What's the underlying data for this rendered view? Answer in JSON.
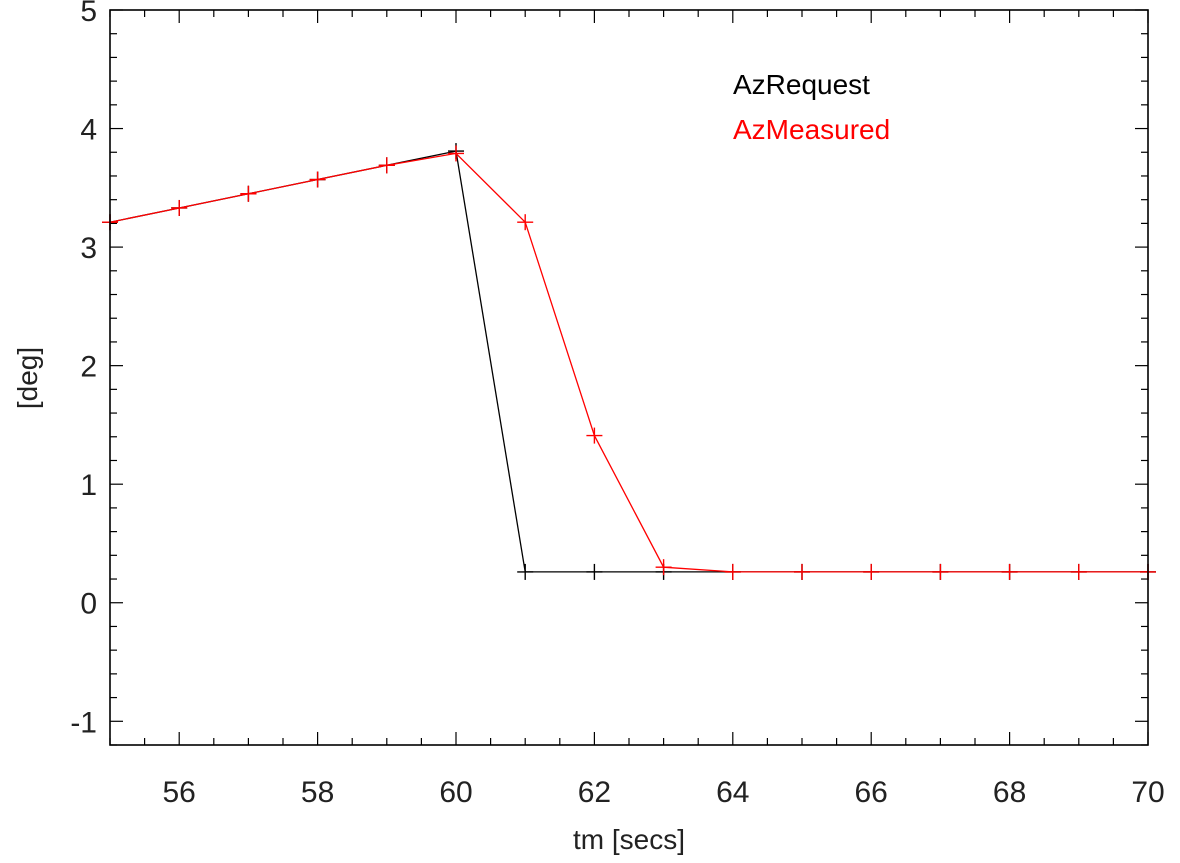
{
  "chart_data": {
    "type": "line",
    "title": "",
    "xlabel": "tm [secs]",
    "ylabel": "[deg]",
    "xlim": [
      55,
      70
    ],
    "ylim": [
      -1.2,
      5.0
    ],
    "x_ticks": [
      56,
      58,
      60,
      62,
      64,
      66,
      68,
      70
    ],
    "y_ticks": [
      -1,
      0,
      1,
      2,
      3,
      4,
      5
    ],
    "legend_position": "top-right",
    "series": [
      {
        "name": "AzRequest",
        "color": "#000000",
        "marker": "plus",
        "points": [
          [
            55,
            3.21
          ],
          [
            56,
            3.33
          ],
          [
            57,
            3.45
          ],
          [
            58,
            3.57
          ],
          [
            59,
            3.69
          ],
          [
            60,
            3.81
          ],
          [
            61,
            0.26
          ],
          [
            62,
            0.26
          ],
          [
            63,
            0.26
          ],
          [
            64,
            0.26
          ],
          [
            65,
            0.26
          ],
          [
            66,
            0.26
          ],
          [
            67,
            0.26
          ],
          [
            68,
            0.26
          ],
          [
            69,
            0.26
          ],
          [
            70,
            0.26
          ]
        ]
      },
      {
        "name": "AzMeasured",
        "color": "#ff0000",
        "marker": "plus",
        "points": [
          [
            55,
            3.21
          ],
          [
            56,
            3.33
          ],
          [
            57,
            3.45
          ],
          [
            58,
            3.57
          ],
          [
            59,
            3.69
          ],
          [
            60,
            3.79
          ],
          [
            61,
            3.21
          ],
          [
            62,
            1.41
          ],
          [
            63,
            0.3
          ],
          [
            64,
            0.26
          ],
          [
            65,
            0.26
          ],
          [
            66,
            0.26
          ],
          [
            67,
            0.26
          ],
          [
            68,
            0.26
          ],
          [
            69,
            0.26
          ],
          [
            70,
            0.26
          ]
        ]
      }
    ]
  }
}
